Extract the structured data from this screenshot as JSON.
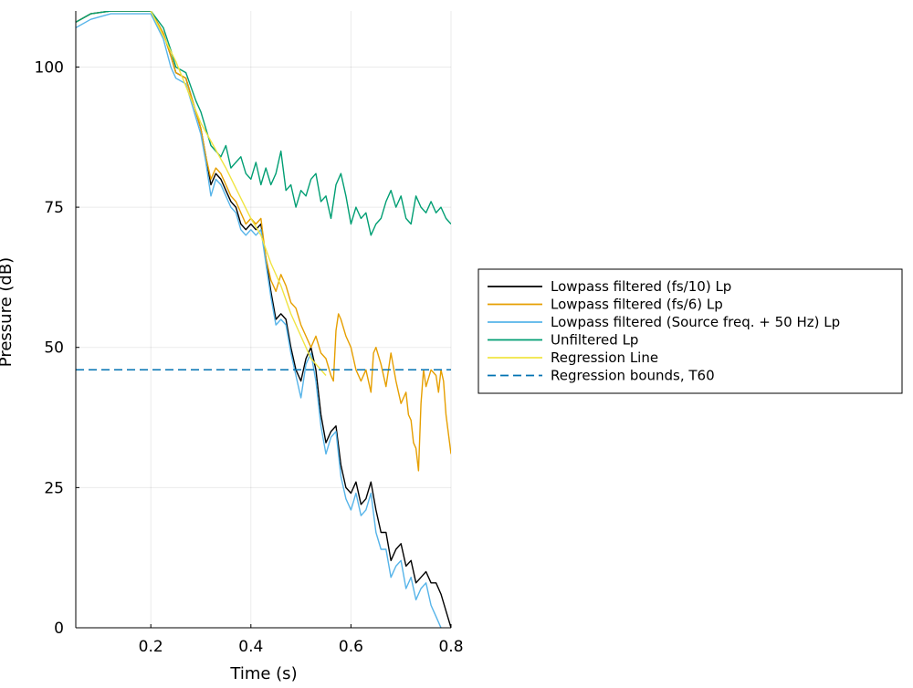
{
  "chart_data": {
    "type": "line",
    "xlabel": "Time (s)",
    "ylabel": "Pressure (dB)",
    "xlim": [
      0.05,
      0.8
    ],
    "ylim": [
      0,
      110
    ],
    "xticks": [
      0.2,
      0.4,
      0.6,
      0.8
    ],
    "xtick_labels": [
      "0.2",
      "0.4",
      "0.6",
      "0.8"
    ],
    "yticks": [
      0,
      25,
      50,
      75,
      100
    ],
    "ytick_labels": [
      "0",
      "25",
      "50",
      "75",
      "100"
    ],
    "grid": true,
    "legend_position": "outer right",
    "series": [
      {
        "name": "Lowpass filtered (fs/10) Lp",
        "color": "#000000",
        "style": "solid",
        "points": [
          [
            0.05,
            108
          ],
          [
            0.08,
            109.5
          ],
          [
            0.12,
            110
          ],
          [
            0.16,
            110
          ],
          [
            0.2,
            110
          ],
          [
            0.225,
            106
          ],
          [
            0.24,
            102
          ],
          [
            0.25,
            99
          ],
          [
            0.27,
            98
          ],
          [
            0.29,
            92
          ],
          [
            0.3,
            89
          ],
          [
            0.31,
            84
          ],
          [
            0.32,
            79
          ],
          [
            0.33,
            81
          ],
          [
            0.34,
            80
          ],
          [
            0.35,
            78
          ],
          [
            0.36,
            76
          ],
          [
            0.37,
            75
          ],
          [
            0.38,
            72
          ],
          [
            0.39,
            71
          ],
          [
            0.4,
            72
          ],
          [
            0.41,
            71
          ],
          [
            0.42,
            72
          ],
          [
            0.43,
            66
          ],
          [
            0.44,
            60
          ],
          [
            0.45,
            55
          ],
          [
            0.46,
            56
          ],
          [
            0.47,
            55
          ],
          [
            0.48,
            50
          ],
          [
            0.49,
            46
          ],
          [
            0.5,
            44
          ],
          [
            0.51,
            48
          ],
          [
            0.52,
            50
          ],
          [
            0.53,
            46
          ],
          [
            0.54,
            38
          ],
          [
            0.55,
            33
          ],
          [
            0.56,
            35
          ],
          [
            0.57,
            36
          ],
          [
            0.58,
            29
          ],
          [
            0.59,
            25
          ],
          [
            0.6,
            24
          ],
          [
            0.61,
            26
          ],
          [
            0.62,
            22
          ],
          [
            0.63,
            23
          ],
          [
            0.64,
            26
          ],
          [
            0.65,
            21
          ],
          [
            0.66,
            17
          ],
          [
            0.67,
            17
          ],
          [
            0.68,
            12
          ],
          [
            0.69,
            14
          ],
          [
            0.7,
            15
          ],
          [
            0.71,
            11
          ],
          [
            0.72,
            12
          ],
          [
            0.73,
            8
          ],
          [
            0.74,
            9
          ],
          [
            0.75,
            10
          ],
          [
            0.76,
            8
          ],
          [
            0.77,
            8
          ],
          [
            0.78,
            6
          ],
          [
            0.79,
            3
          ],
          [
            0.8,
            0
          ]
        ]
      },
      {
        "name": "Lowpass filtered (fs/6) Lp",
        "color": "#e69f00",
        "style": "solid",
        "points": [
          [
            0.05,
            108
          ],
          [
            0.08,
            109.5
          ],
          [
            0.12,
            110
          ],
          [
            0.16,
            110
          ],
          [
            0.2,
            110
          ],
          [
            0.225,
            106
          ],
          [
            0.24,
            102
          ],
          [
            0.25,
            99
          ],
          [
            0.27,
            98
          ],
          [
            0.29,
            92
          ],
          [
            0.3,
            89
          ],
          [
            0.31,
            84
          ],
          [
            0.32,
            80
          ],
          [
            0.33,
            82
          ],
          [
            0.34,
            81
          ],
          [
            0.35,
            79
          ],
          [
            0.36,
            77
          ],
          [
            0.37,
            76
          ],
          [
            0.38,
            74
          ],
          [
            0.39,
            72
          ],
          [
            0.4,
            73
          ],
          [
            0.41,
            72
          ],
          [
            0.42,
            73
          ],
          [
            0.43,
            66
          ],
          [
            0.44,
            62
          ],
          [
            0.45,
            60
          ],
          [
            0.46,
            63
          ],
          [
            0.47,
            61
          ],
          [
            0.48,
            58
          ],
          [
            0.49,
            57
          ],
          [
            0.5,
            54
          ],
          [
            0.51,
            52
          ],
          [
            0.52,
            50
          ],
          [
            0.53,
            52
          ],
          [
            0.54,
            49
          ],
          [
            0.55,
            48
          ],
          [
            0.56,
            45
          ],
          [
            0.565,
            44
          ],
          [
            0.57,
            53
          ],
          [
            0.575,
            56
          ],
          [
            0.58,
            55
          ],
          [
            0.59,
            52
          ],
          [
            0.6,
            50
          ],
          [
            0.61,
            46
          ],
          [
            0.62,
            44
          ],
          [
            0.63,
            46
          ],
          [
            0.64,
            42
          ],
          [
            0.645,
            49
          ],
          [
            0.65,
            50
          ],
          [
            0.66,
            47
          ],
          [
            0.67,
            43
          ],
          [
            0.68,
            49
          ],
          [
            0.69,
            44
          ],
          [
            0.7,
            40
          ],
          [
            0.71,
            42
          ],
          [
            0.715,
            38
          ],
          [
            0.72,
            37
          ],
          [
            0.725,
            33
          ],
          [
            0.73,
            32
          ],
          [
            0.735,
            28
          ],
          [
            0.74,
            40
          ],
          [
            0.745,
            46
          ],
          [
            0.75,
            43
          ],
          [
            0.76,
            46
          ],
          [
            0.77,
            45
          ],
          [
            0.775,
            42
          ],
          [
            0.78,
            46
          ],
          [
            0.785,
            44
          ],
          [
            0.79,
            38
          ],
          [
            0.8,
            31
          ]
        ]
      },
      {
        "name": "Lowpass filtered (Source freq. + 50 Hz) Lp",
        "color": "#56b4e9",
        "style": "solid",
        "points": [
          [
            0.05,
            107
          ],
          [
            0.08,
            108.5
          ],
          [
            0.12,
            109.5
          ],
          [
            0.16,
            109.5
          ],
          [
            0.2,
            109.5
          ],
          [
            0.225,
            105
          ],
          [
            0.24,
            100
          ],
          [
            0.25,
            98
          ],
          [
            0.27,
            97
          ],
          [
            0.29,
            91
          ],
          [
            0.3,
            88
          ],
          [
            0.31,
            83
          ],
          [
            0.32,
            77
          ],
          [
            0.33,
            80
          ],
          [
            0.34,
            79
          ],
          [
            0.35,
            77
          ],
          [
            0.36,
            75
          ],
          [
            0.37,
            74
          ],
          [
            0.38,
            71
          ],
          [
            0.39,
            70
          ],
          [
            0.4,
            71
          ],
          [
            0.41,
            70
          ],
          [
            0.42,
            71
          ],
          [
            0.43,
            65
          ],
          [
            0.44,
            59
          ],
          [
            0.45,
            54
          ],
          [
            0.46,
            55
          ],
          [
            0.47,
            54
          ],
          [
            0.48,
            49
          ],
          [
            0.49,
            45
          ],
          [
            0.5,
            41
          ],
          [
            0.51,
            47
          ],
          [
            0.52,
            49
          ],
          [
            0.53,
            44
          ],
          [
            0.54,
            36
          ],
          [
            0.55,
            31
          ],
          [
            0.56,
            34
          ],
          [
            0.57,
            35
          ],
          [
            0.58,
            27
          ],
          [
            0.59,
            23
          ],
          [
            0.6,
            21
          ],
          [
            0.61,
            24
          ],
          [
            0.62,
            20
          ],
          [
            0.63,
            21
          ],
          [
            0.64,
            24
          ],
          [
            0.65,
            17
          ],
          [
            0.66,
            14
          ],
          [
            0.67,
            14
          ],
          [
            0.68,
            9
          ],
          [
            0.69,
            11
          ],
          [
            0.7,
            12
          ],
          [
            0.71,
            7
          ],
          [
            0.72,
            9
          ],
          [
            0.73,
            5
          ],
          [
            0.74,
            7
          ],
          [
            0.75,
            8
          ],
          [
            0.76,
            4
          ],
          [
            0.77,
            2
          ],
          [
            0.78,
            0
          ]
        ]
      },
      {
        "name": "Unfiltered Lp",
        "color": "#009e73",
        "style": "solid",
        "points": [
          [
            0.05,
            108
          ],
          [
            0.08,
            109.5
          ],
          [
            0.12,
            110
          ],
          [
            0.16,
            110
          ],
          [
            0.2,
            110
          ],
          [
            0.225,
            107
          ],
          [
            0.24,
            103
          ],
          [
            0.25,
            100
          ],
          [
            0.27,
            99
          ],
          [
            0.29,
            94
          ],
          [
            0.3,
            92
          ],
          [
            0.31,
            89
          ],
          [
            0.32,
            86
          ],
          [
            0.33,
            85
          ],
          [
            0.34,
            84
          ],
          [
            0.35,
            86
          ],
          [
            0.36,
            82
          ],
          [
            0.37,
            83
          ],
          [
            0.38,
            84
          ],
          [
            0.39,
            81
          ],
          [
            0.4,
            80
          ],
          [
            0.41,
            83
          ],
          [
            0.42,
            79
          ],
          [
            0.43,
            82
          ],
          [
            0.44,
            79
          ],
          [
            0.45,
            81
          ],
          [
            0.46,
            85
          ],
          [
            0.47,
            78
          ],
          [
            0.48,
            79
          ],
          [
            0.49,
            75
          ],
          [
            0.5,
            78
          ],
          [
            0.51,
            77
          ],
          [
            0.52,
            80
          ],
          [
            0.53,
            81
          ],
          [
            0.54,
            76
          ],
          [
            0.55,
            77
          ],
          [
            0.56,
            73
          ],
          [
            0.57,
            79
          ],
          [
            0.58,
            81
          ],
          [
            0.59,
            77
          ],
          [
            0.6,
            72
          ],
          [
            0.61,
            75
          ],
          [
            0.62,
            73
          ],
          [
            0.63,
            74
          ],
          [
            0.64,
            70
          ],
          [
            0.65,
            72
          ],
          [
            0.66,
            73
          ],
          [
            0.67,
            76
          ],
          [
            0.68,
            78
          ],
          [
            0.69,
            75
          ],
          [
            0.7,
            77
          ],
          [
            0.71,
            73
          ],
          [
            0.72,
            72
          ],
          [
            0.73,
            77
          ],
          [
            0.74,
            75
          ],
          [
            0.75,
            74
          ],
          [
            0.76,
            76
          ],
          [
            0.77,
            74
          ],
          [
            0.78,
            75
          ],
          [
            0.79,
            73
          ],
          [
            0.8,
            72
          ]
        ]
      },
      {
        "name": "Regression Line",
        "color": "#f0e442",
        "style": "solid",
        "points": [
          [
            0.2,
            110
          ],
          [
            0.25,
            101
          ],
          [
            0.3,
            90
          ],
          [
            0.35,
            82
          ],
          [
            0.4,
            73
          ],
          [
            0.42,
            70
          ],
          [
            0.44,
            65
          ],
          [
            0.46,
            61
          ],
          [
            0.48,
            56
          ],
          [
            0.5,
            52
          ],
          [
            0.52,
            48
          ],
          [
            0.55,
            45
          ]
        ]
      },
      {
        "name": "Regression bounds, T60",
        "color": "#0072b2",
        "style": "dashed",
        "points": [
          [
            0.05,
            46
          ],
          [
            0.8,
            46
          ]
        ]
      }
    ]
  }
}
